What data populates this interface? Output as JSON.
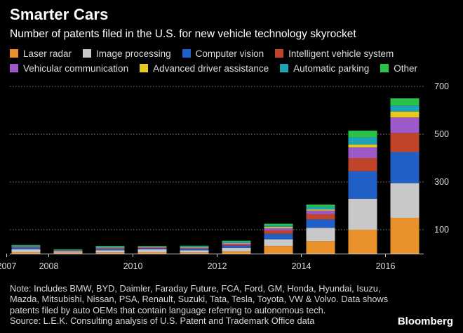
{
  "header": {
    "title": "Smarter Cars",
    "subtitle": "Number of patents filed in the U.S. for new vehicle technology skyrocket"
  },
  "footer": {
    "note": "Note: Includes BMW, BYD, Daimler, Faraday Future, FCA, Ford, GM, Honda, Hyundai, Isuzu, Mazda, Mitsubishi, Nissan, PSA, Renault, Suzuki, Tata, Tesla, Toyota, VW & Volvo. Data shows patents filed by auto OEMs that contain language referring to autonomous tech.",
    "source": "Source: L.E.K. Consulting analysis of U.S. Patent and Trademark Office data",
    "brand": "Bloomberg"
  },
  "chart_data": {
    "type": "bar",
    "stacked": true,
    "categories": [
      "2007",
      "2008",
      "2009",
      "2010",
      "2011",
      "2012",
      "2013",
      "2014",
      "2015",
      "2016"
    ],
    "x_tick_labels": [
      "2007",
      "2008",
      "",
      "2010",
      "",
      "2012",
      "",
      "2014",
      "",
      "2016"
    ],
    "y_ticks": [
      100,
      300,
      500,
      700
    ],
    "ylim": [
      0,
      700
    ],
    "y_axis_side": "right",
    "grid": true,
    "legend_placement": "top",
    "series": [
      {
        "name": "Laser radar",
        "color": "#e8902a",
        "values": [
          6,
          4,
          5,
          6,
          5,
          10,
          32,
          52,
          100,
          150
        ]
      },
      {
        "name": "Image processing",
        "color": "#c8c8c8",
        "values": [
          12,
          6,
          9,
          12,
          9,
          14,
          28,
          56,
          130,
          145
        ]
      },
      {
        "name": "Computer vision",
        "color": "#1f5fc6",
        "values": [
          7,
          2,
          5,
          3,
          6,
          9,
          23,
          35,
          115,
          130
        ]
      },
      {
        "name": "Intelligent vehicle system",
        "color": "#c0442a",
        "values": [
          2,
          1,
          2,
          2,
          2,
          4,
          14,
          22,
          55,
          80
        ]
      },
      {
        "name": "Vehicular communication",
        "color": "#9b59c9",
        "values": [
          2,
          1,
          3,
          4,
          3,
          5,
          10,
          15,
          45,
          65
        ]
      },
      {
        "name": "Advanced driver assistance",
        "color": "#e8c81f",
        "values": [
          1,
          1,
          2,
          1,
          2,
          3,
          5,
          5,
          12,
          25
        ]
      },
      {
        "name": "Automatic parking",
        "color": "#1ba3b8",
        "values": [
          3,
          1,
          3,
          2,
          3,
          5,
          6,
          10,
          30,
          25
        ]
      },
      {
        "name": "Other",
        "color": "#2bc24a",
        "values": [
          3,
          2,
          3,
          2,
          3,
          4,
          7,
          10,
          28,
          30
        ]
      }
    ]
  }
}
